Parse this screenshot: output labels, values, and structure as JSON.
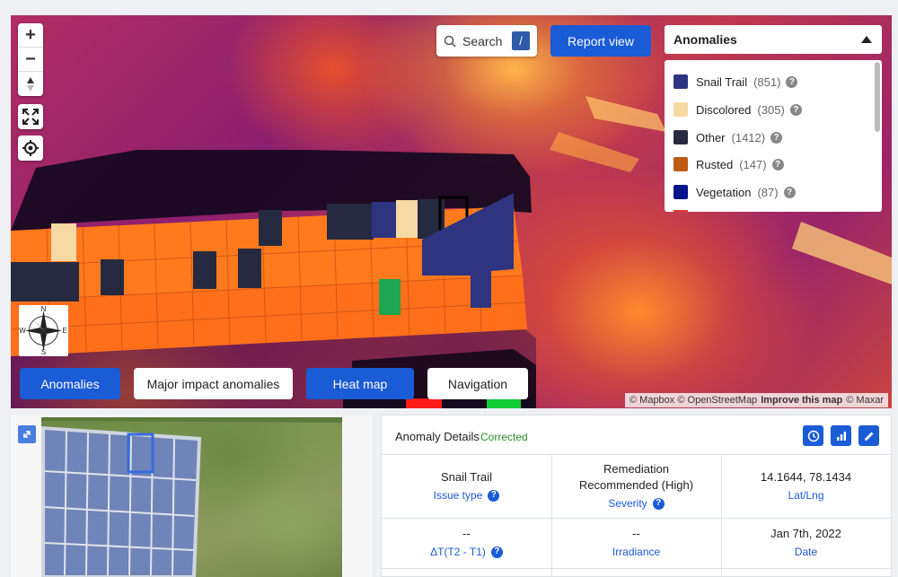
{
  "map": {
    "controls": {
      "zoom_in": "+",
      "zoom_out": "−",
      "compass_n": "N",
      "compass_s": "S",
      "compass_e": "E",
      "compass_w": "W"
    },
    "search": {
      "label": "Search",
      "shortcut": "/"
    },
    "report_button": "Report view",
    "dropdown": {
      "selected": "Anomalies"
    },
    "anomalies": [
      {
        "label": "Snail Trail",
        "count": "(851)",
        "color": "#2e3480"
      },
      {
        "label": "Discolored",
        "count": "(305)",
        "color": "#f7d9a4"
      },
      {
        "label": "Other",
        "count": "(1412)",
        "color": "#262a40"
      },
      {
        "label": "Rusted",
        "count": "(147)",
        "color": "#c05a12"
      },
      {
        "label": "Vegetation",
        "count": "(87)",
        "color": "#08128c"
      }
    ],
    "help_glyph": "?",
    "tabs": [
      {
        "label": "Anomalies",
        "active": true
      },
      {
        "label": "Major impact anomalies",
        "active": false
      },
      {
        "label": "Heat map",
        "active": true
      },
      {
        "label": "Navigation",
        "active": false
      }
    ],
    "attribution": {
      "mapbox": "© Mapbox",
      "osm": "© OpenStreetMap",
      "improve": "Improve this map",
      "maxar": "© Maxar"
    }
  },
  "details": {
    "title": "Anomaly Details",
    "status": "Corrected",
    "issue_value": "Snail Trail",
    "issue_label": "Issue type",
    "severity_value": "Remediation Recommended (High)",
    "severity_label": "Severity",
    "latlng_value": "14.1644, 78.1434",
    "latlng_label": "Lat/Lng",
    "dt_value": "--",
    "dt_label": "ΔT(T2 - T1)",
    "irradiance_value": "--",
    "irradiance_label": "Irradiance",
    "date_value": "Jan 7th, 2022",
    "date_label": "Date"
  }
}
